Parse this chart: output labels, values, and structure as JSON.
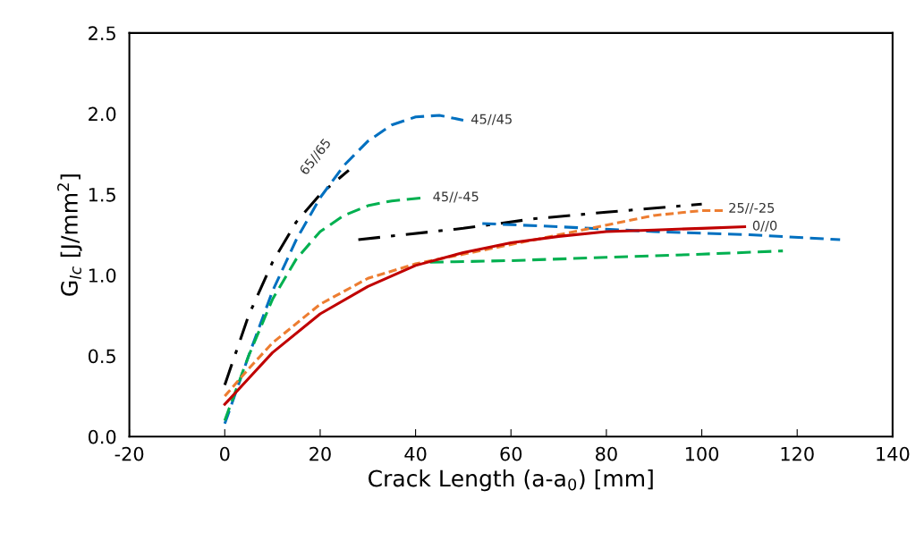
{
  "chart_data": {
    "type": "line",
    "xlabel": "Crack Length (a-a$_{0}$) [mm]",
    "ylabel": "G$_{Ic}$ [J/mm$^{2}$]",
    "xlim": [
      -20,
      140
    ],
    "xticks": [
      -20,
      0,
      20,
      40,
      60,
      80,
      100,
      120,
      140
    ],
    "ylim": [
      0,
      2.5
    ],
    "yticks": [
      {
        "value": 0,
        "label": "0.0"
      },
      {
        "value": 0.5,
        "label": "0.5"
      },
      {
        "value": 1,
        "label": "1.0"
      },
      {
        "value": 1.5,
        "label": "1.5"
      },
      {
        "value": 2,
        "label": "2.0"
      },
      {
        "value": 2.5,
        "label": "2.5"
      }
    ],
    "grid": false,
    "legend": false,
    "marker": "none",
    "series": [
      {
        "color": "#000000",
        "line_style": "dashdot",
        "x": [
          0,
          5,
          10,
          15,
          20,
          26,
          27,
          28,
          50,
          65,
          80,
          100
        ],
        "values": [
          0.32,
          0.75,
          1.08,
          1.33,
          1.5,
          1.65,
          null,
          1.22,
          1.29,
          1.35,
          1.39,
          1.44
        ]
      },
      {
        "color": "#0070c0",
        "line_style": "dashed",
        "x": [
          0,
          5,
          10,
          15,
          20,
          25,
          30,
          35,
          40,
          45,
          50,
          52,
          54,
          70,
          90,
          110,
          129
        ],
        "values": [
          0.08,
          0.5,
          0.9,
          1.22,
          1.48,
          1.68,
          1.83,
          1.93,
          1.98,
          1.99,
          1.96,
          null,
          1.32,
          1.3,
          1.27,
          1.25,
          1.22
        ]
      },
      {
        "color": "#00b050",
        "line_style": "dashed",
        "x": [
          0,
          5,
          10,
          15,
          20,
          25,
          30,
          35,
          42,
          42.5,
          43,
          60,
          80,
          100,
          117
        ],
        "values": [
          0.1,
          0.5,
          0.85,
          1.1,
          1.27,
          1.37,
          1.43,
          1.46,
          1.48,
          null,
          1.08,
          1.09,
          1.11,
          1.13,
          1.15
        ]
      },
      {
        "color": "#ed7d31",
        "line_style": "dotted",
        "x": [
          0,
          5,
          10,
          20,
          30,
          40,
          50,
          60,
          70,
          80,
          90,
          100,
          105
        ],
        "values": [
          0.25,
          0.42,
          0.58,
          0.82,
          0.98,
          1.07,
          1.13,
          1.19,
          1.25,
          1.31,
          1.37,
          1.4,
          1.4
        ]
      },
      {
        "color": "#c00000",
        "line_style": "solid",
        "x": [
          0,
          5,
          10,
          20,
          30,
          40,
          50,
          60,
          70,
          80,
          90,
          100,
          109
        ],
        "values": [
          0.2,
          0.36,
          0.52,
          0.76,
          0.93,
          1.06,
          1.14,
          1.2,
          1.24,
          1.27,
          1.28,
          1.29,
          1.3
        ]
      }
    ],
    "annotations": [
      {
        "text": "65//65",
        "x": 26,
        "y": 1.65
      },
      {
        "text": "45//45",
        "x": 50,
        "y": 1.96
      },
      {
        "text": "45//-45",
        "x": 42,
        "y": 1.48
      },
      {
        "text": "25//-25",
        "x": 104,
        "y": 1.41
      },
      {
        "text": "0//0",
        "x": 109,
        "y": 1.3
      }
    ]
  }
}
